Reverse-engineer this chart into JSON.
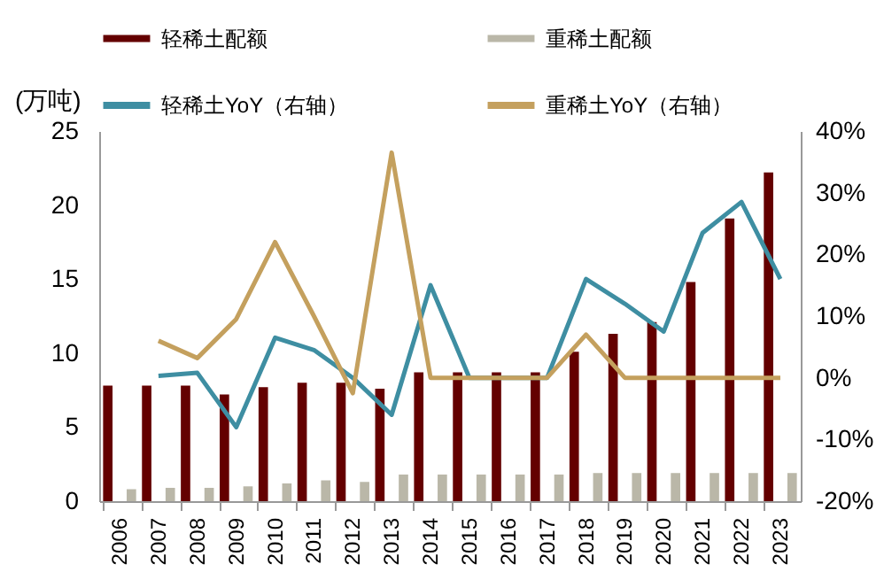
{
  "chart_data": {
    "type": "bar",
    "ylabel": "(万吨)",
    "categories": [
      "2006",
      "2007",
      "2008",
      "2009",
      "2010",
      "2011",
      "2012",
      "2013",
      "2014",
      "2015",
      "2016",
      "2017",
      "2018",
      "2019",
      "2020",
      "2021",
      "2022",
      "2023"
    ],
    "series": [
      {
        "name": "轻稀土配额",
        "color": "#640000",
        "values": [
          7.8,
          7.8,
          7.8,
          7.2,
          7.7,
          8.0,
          8.0,
          7.6,
          8.7,
          8.7,
          8.7,
          8.7,
          10.1,
          11.3,
          12.1,
          14.8,
          19.1,
          22.2
        ]
      },
      {
        "name": "重稀土配额",
        "color": "#bab7a8",
        "values": [
          0.8,
          0.9,
          0.9,
          1.0,
          1.2,
          1.4,
          1.3,
          1.8,
          1.8,
          1.8,
          1.8,
          1.8,
          1.9,
          1.9,
          1.9,
          1.9,
          1.9,
          1.9
        ]
      },
      {
        "name": "轻稀土YoY（右轴）",
        "type": "line",
        "axis": "y2",
        "color": "#3e8ea2",
        "values": [
          null,
          0.3,
          0.8,
          -8,
          6.5,
          4.5,
          0,
          -6,
          15,
          0,
          0,
          0,
          16,
          12,
          7.5,
          23.5,
          28.5,
          16
        ]
      },
      {
        "name": "重稀土YoY（右轴）",
        "type": "line",
        "axis": "y2",
        "color": "#c4a05e",
        "values": [
          null,
          6,
          3.2,
          9.5,
          22,
          10,
          -2.5,
          36.5,
          0,
          0,
          0,
          0,
          7,
          0,
          0,
          0,
          0,
          0
        ]
      }
    ],
    "ylim": [
      0,
      25
    ],
    "yticks": [
      0,
      5,
      10,
      15,
      20,
      25
    ],
    "y2lim": [
      -20,
      40
    ],
    "y2ticks": [
      {
        "value": -20,
        "label": "-20%"
      },
      {
        "value": -10,
        "label": "-10%"
      },
      {
        "value": 0,
        "label": "0%"
      },
      {
        "value": 10,
        "label": "10%"
      },
      {
        "value": 20,
        "label": "20%"
      },
      {
        "value": 30,
        "label": "30%"
      },
      {
        "value": 40,
        "label": "40%"
      }
    ],
    "grid": false,
    "legend": "top"
  }
}
